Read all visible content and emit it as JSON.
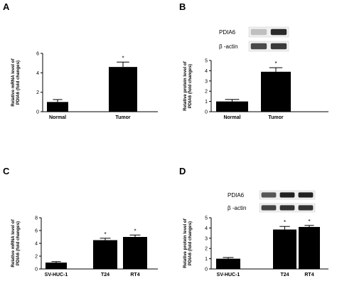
{
  "chart_data": [
    {
      "id": "A",
      "type": "bar",
      "panel_label": "A",
      "ylabel_lines": [
        "Relative mRNA level of",
        "PDIA6 (fold changes)"
      ],
      "categories": [
        "Normal",
        "Tumor"
      ],
      "values": [
        1.0,
        4.6
      ],
      "errors": [
        0.25,
        0.5
      ],
      "significance": [
        "",
        "*"
      ],
      "ylim": [
        0,
        6
      ],
      "yticks": [
        0,
        2,
        4,
        6
      ],
      "bar_color": "#000000"
    },
    {
      "id": "B",
      "type": "bar",
      "panel_label": "B",
      "ylabel_lines": [
        "Relative protein level of",
        "PDIA6 (fold changes)"
      ],
      "categories": [
        "Normal",
        "Tumor"
      ],
      "values": [
        1.0,
        3.9
      ],
      "errors": [
        0.2,
        0.4
      ],
      "significance": [
        "",
        "*"
      ],
      "ylim": [
        0,
        5
      ],
      "yticks": [
        0,
        1,
        2,
        3,
        4,
        5
      ],
      "bar_color": "#000000",
      "blot_labels": [
        "PDIA6",
        "β -actin"
      ]
    },
    {
      "id": "C",
      "type": "bar",
      "panel_label": "C",
      "ylabel_lines": [
        "Relative mRNA level of",
        "PDIA6 (fold changes)"
      ],
      "categories": [
        "SV-HUC-1",
        "T24",
        "RT4"
      ],
      "values": [
        1.0,
        4.5,
        5.0
      ],
      "errors": [
        0.15,
        0.3,
        0.3
      ],
      "significance": [
        "",
        "*",
        "*"
      ],
      "ylim": [
        0,
        8
      ],
      "yticks": [
        0,
        2,
        4,
        6,
        8
      ],
      "bar_color": "#000000"
    },
    {
      "id": "D",
      "type": "bar",
      "panel_label": "D",
      "ylabel_lines": [
        "Relative protein level of",
        "PDIA6 (fold changes)"
      ],
      "categories": [
        "SV-HUC-1",
        "T24",
        "RT4"
      ],
      "values": [
        1.0,
        3.85,
        4.1
      ],
      "errors": [
        0.12,
        0.3,
        0.15
      ],
      "significance": [
        "",
        "*",
        "*"
      ],
      "ylim": [
        0,
        5
      ],
      "yticks": [
        0,
        1,
        2,
        3,
        4,
        5
      ],
      "bar_color": "#000000",
      "blot_labels": [
        "PDIA6",
        "β -actin"
      ]
    }
  ]
}
